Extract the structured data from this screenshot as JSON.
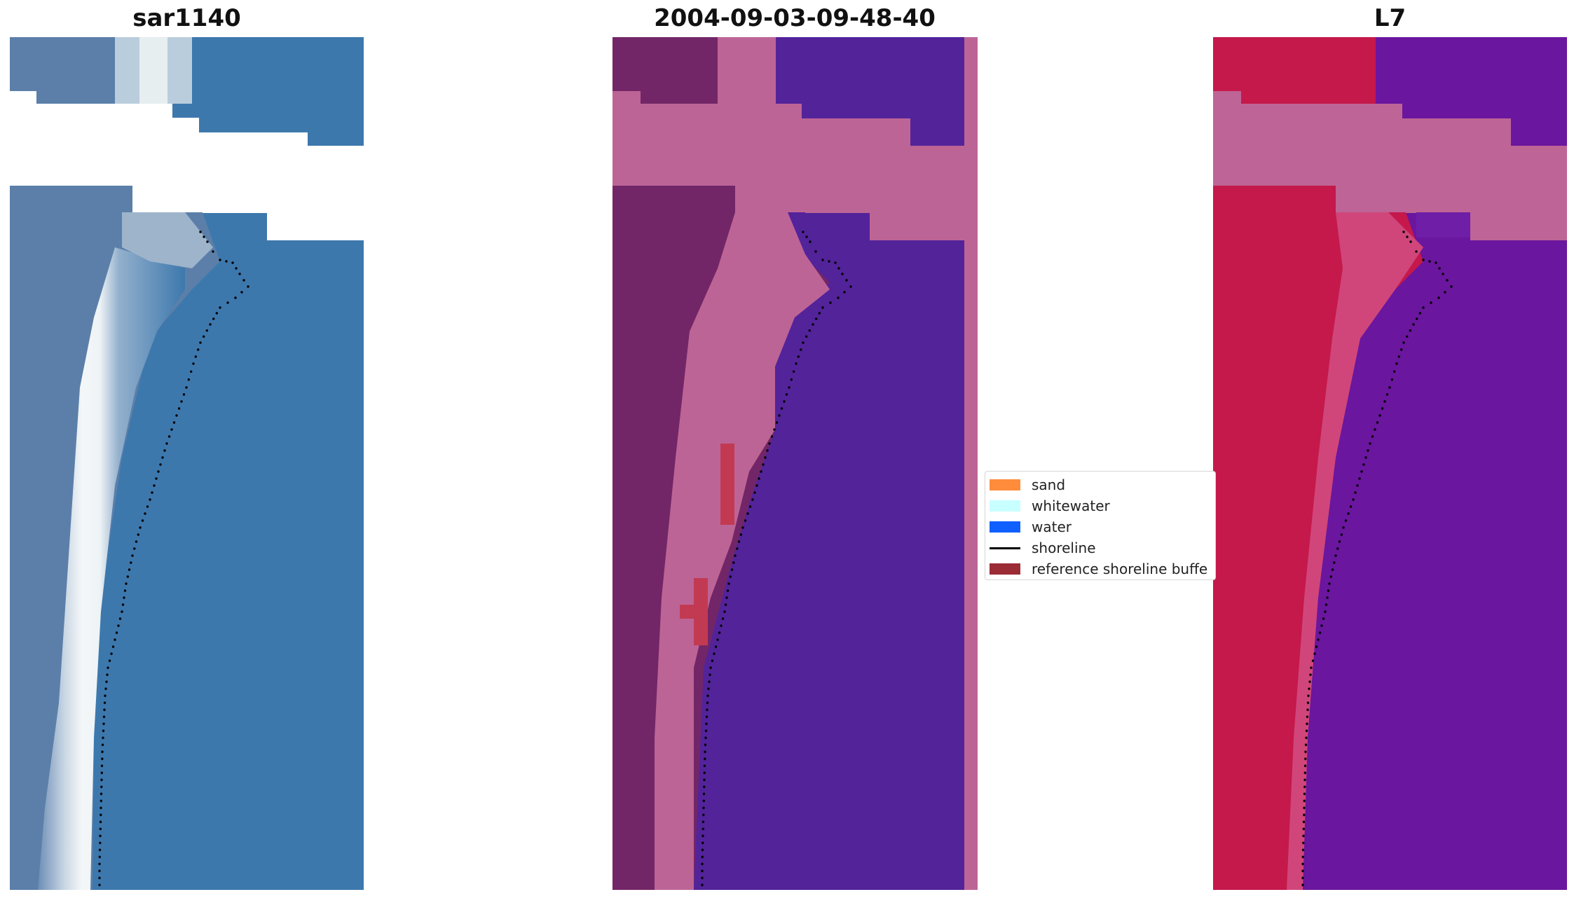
{
  "panels": [
    {
      "id": "rgb",
      "title": "sar1140"
    },
    {
      "id": "classified",
      "title": "2004-09-03-09-48-40"
    },
    {
      "id": "index",
      "title": "L7"
    }
  ],
  "legend": {
    "items": [
      {
        "label": "sand",
        "color": "#ff8c3b",
        "kind": "patch"
      },
      {
        "label": "whitewater",
        "color": "#c8ffff",
        "kind": "patch"
      },
      {
        "label": "water",
        "color": "#1060ff",
        "kind": "patch"
      },
      {
        "label": "shoreline",
        "color": "#000000",
        "kind": "line"
      },
      {
        "label": "reference shoreline buffe",
        "color": "#9b2b35",
        "kind": "patch"
      }
    ]
  },
  "colors": {
    "rgb_water": "#3d78ad",
    "rgb_land": "#5b7fa9",
    "rgb_beach": "#f2f6f8",
    "cls_land_dark": "#722667",
    "cls_land_pink": "#bd6496",
    "cls_water": "#53239a",
    "cls_buffer": "#c23a52",
    "idx_land": "#c5184b",
    "idx_water": "#6a169e",
    "idx_cloud": "#be6496",
    "nodata": "#ffffff",
    "shoreline": "#000000"
  }
}
